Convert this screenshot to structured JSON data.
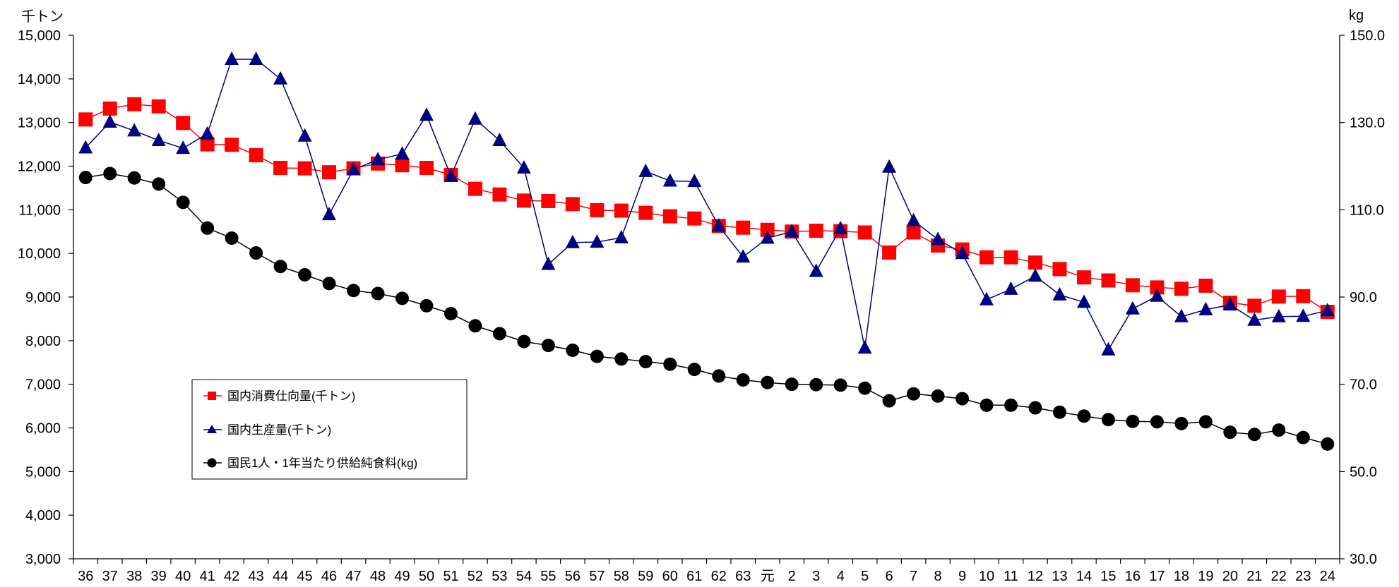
{
  "chart_data": {
    "type": "line",
    "left_axis": {
      "unit": "千トン",
      "ylim": [
        3000,
        15000
      ],
      "ticks": [
        "3,000",
        "4,000",
        "5,000",
        "6,000",
        "7,000",
        "8,000",
        "9,000",
        "10,000",
        "11,000",
        "12,000",
        "13,000",
        "14,000",
        "15,000"
      ]
    },
    "right_axis": {
      "unit": "kg",
      "ylim": [
        30,
        150
      ],
      "ticks": [
        "30.0",
        "50.0",
        "70.0",
        "90.0",
        "110.0",
        "130.0",
        "150.0"
      ]
    },
    "categories": [
      "36",
      "37",
      "38",
      "39",
      "40",
      "41",
      "42",
      "43",
      "44",
      "45",
      "46",
      "47",
      "48",
      "49",
      "50",
      "51",
      "52",
      "53",
      "54",
      "55",
      "56",
      "57",
      "58",
      "59",
      "60",
      "61",
      "62",
      "63",
      "元",
      "2",
      "3",
      "4",
      "5",
      "6",
      "7",
      "8",
      "9",
      "10",
      "11",
      "12",
      "13",
      "14",
      "15",
      "16",
      "17",
      "18",
      "19",
      "20",
      "21",
      "22",
      "23",
      "24"
    ],
    "grid": false,
    "legend_position": "lower-left",
    "series": [
      {
        "name": "国内消費仕向量(千トン)",
        "axis": "left",
        "color": "#ff0000",
        "line_color": "#ff0000",
        "marker": "square",
        "values": [
          13070,
          13320,
          13420,
          13370,
          12990,
          12500,
          12490,
          12250,
          11960,
          11950,
          11860,
          11950,
          12060,
          12020,
          11960,
          11800,
          11480,
          11350,
          11210,
          11200,
          11130,
          10990,
          10980,
          10930,
          10850,
          10800,
          10630,
          10590,
          10540,
          10500,
          10520,
          10510,
          10480,
          10020,
          10480,
          10180,
          10090,
          9910,
          9910,
          9790,
          9640,
          9450,
          9380,
          9270,
          9220,
          9190,
          9260,
          8870,
          8800,
          9010,
          9020,
          8660
        ]
      },
      {
        "name": "国内生産量(千トン)",
        "axis": "left",
        "color": "#000080",
        "line_color": "#000080",
        "marker": "triangle",
        "values": [
          12420,
          13010,
          12810,
          12590,
          12410,
          12740,
          14450,
          14450,
          14000,
          12690,
          10890,
          11920,
          12150,
          12280,
          13170,
          11770,
          13080,
          12590,
          11960,
          9750,
          10250,
          10260,
          10360,
          11880,
          11660,
          11650,
          10630,
          9920,
          10350,
          10500,
          9590,
          10570,
          7830,
          11980,
          10750,
          10320,
          10000,
          8940,
          9180,
          9480,
          9050,
          8880,
          7790,
          8730,
          9020,
          8550,
          8710,
          8820,
          8470,
          8550,
          8560,
          8690
        ]
      },
      {
        "name": "国民1人・1年当たり供給純食料(kg)",
        "axis": "right",
        "color": "#000000",
        "line_color": "#000000",
        "marker": "circle",
        "values": [
          117.4,
          118.3,
          117.3,
          115.9,
          111.7,
          105.8,
          103.5,
          100.1,
          97.0,
          95.1,
          93.1,
          91.5,
          90.8,
          89.7,
          88.0,
          86.2,
          83.4,
          81.6,
          79.8,
          78.9,
          77.8,
          76.4,
          75.8,
          75.2,
          74.6,
          73.4,
          71.9,
          71.0,
          70.4,
          70.0,
          69.9,
          69.8,
          69.1,
          66.2,
          67.8,
          67.3,
          66.7,
          65.2,
          65.2,
          64.6,
          63.6,
          62.7,
          61.9,
          61.5,
          61.4,
          61.0,
          61.4,
          59.0,
          58.5,
          59.5,
          57.8,
          56.3
        ]
      }
    ]
  }
}
